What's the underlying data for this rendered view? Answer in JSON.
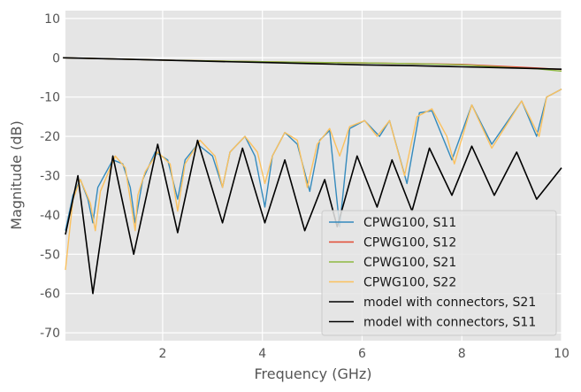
{
  "chart_data": {
    "type": "line",
    "title": "",
    "xlabel": "Frequency (GHz)",
    "ylabel": "Magnitude (dB)",
    "xlim": [
      0.05,
      10
    ],
    "ylim": [
      -72,
      12
    ],
    "xticks": [
      2,
      4,
      6,
      8,
      10
    ],
    "yticks": [
      10,
      0,
      -10,
      -20,
      -30,
      -40,
      -50,
      -60,
      -70
    ],
    "grid": true,
    "legend_position": "lower-right",
    "series": [
      {
        "name": "CPWG100, S11",
        "color": "#348ABD",
        "x": [
          0.05,
          0.2,
          0.35,
          0.5,
          0.6,
          0.7,
          1.0,
          1.2,
          1.35,
          1.45,
          1.6,
          1.85,
          2.1,
          2.3,
          2.45,
          2.7,
          3.0,
          3.2,
          3.35,
          3.65,
          3.85,
          4.05,
          4.2,
          4.45,
          4.7,
          4.95,
          5.15,
          5.35,
          5.55,
          5.75,
          6.05,
          6.35,
          6.55,
          6.9,
          7.15,
          7.4,
          7.8,
          8.2,
          8.6,
          9.2,
          9.5,
          9.7,
          10
        ],
        "y": [
          -44,
          -35,
          -31,
          -36,
          -42,
          -33,
          -26,
          -27,
          -33,
          -42,
          -31,
          -24,
          -26,
          -36,
          -26,
          -22,
          -25,
          -33,
          -24,
          -20,
          -25,
          -38,
          -25,
          -19,
          -22,
          -34,
          -21,
          -18.5,
          -43,
          -18,
          -16,
          -20,
          -16,
          -32,
          -14,
          -13.5,
          -26,
          -12,
          -22,
          -11,
          -20,
          -10,
          -8
        ]
      },
      {
        "name": "CPWG100, S12",
        "color": "#E24A33",
        "x": [
          0,
          1,
          2,
          3,
          4,
          5,
          6,
          7,
          8,
          9,
          9.5,
          10
        ],
        "y": [
          0,
          -0.3,
          -0.6,
          -0.8,
          -1.0,
          -1.2,
          -1.3,
          -1.5,
          -1.7,
          -2.3,
          -2.6,
          -3.0
        ]
      },
      {
        "name": "CPWG100, S21",
        "color": "#8EBA42",
        "x": [
          0,
          1,
          2,
          3,
          4,
          5,
          6,
          7,
          8,
          9,
          9.5,
          10
        ],
        "y": [
          0,
          -0.3,
          -0.6,
          -0.8,
          -1.0,
          -1.2,
          -1.3,
          -1.5,
          -1.8,
          -2.5,
          -2.8,
          -3.4
        ]
      },
      {
        "name": "CPWG100, S22",
        "color": "#FBC15E",
        "x": [
          0.05,
          0.2,
          0.35,
          0.55,
          0.65,
          0.75,
          1.05,
          1.25,
          1.45,
          1.5,
          1.65,
          1.9,
          2.15,
          2.3,
          2.45,
          2.75,
          3.05,
          3.2,
          3.35,
          3.65,
          3.9,
          4.05,
          4.2,
          4.45,
          4.7,
          4.9,
          5.1,
          5.35,
          5.55,
          5.75,
          6.05,
          6.3,
          6.55,
          6.85,
          7.1,
          7.4,
          7.7,
          7.85,
          8.2,
          8.6,
          9.2,
          9.55,
          9.7,
          10
        ],
        "y": [
          -54,
          -36,
          -31,
          -37,
          -44,
          -34,
          -25,
          -28,
          -44,
          -35,
          -29,
          -24,
          -27,
          -39,
          -27,
          -21,
          -25,
          -33,
          -24,
          -20,
          -24,
          -32,
          -25,
          -19,
          -21,
          -33,
          -22,
          -18,
          -25,
          -17.5,
          -16,
          -20,
          -16,
          -30,
          -15,
          -13,
          -20,
          -27,
          -12,
          -23,
          -11,
          -20,
          -10,
          -8
        ]
      },
      {
        "name": "model with connectors, S21",
        "color": "#000000",
        "x": [
          0,
          1,
          2,
          3,
          4,
          5,
          6,
          7,
          8,
          9,
          10
        ],
        "y": [
          0,
          -0.3,
          -0.6,
          -0.9,
          -1.2,
          -1.5,
          -1.8,
          -2.0,
          -2.3,
          -2.6,
          -2.9
        ]
      },
      {
        "name": "model with connectors, S11",
        "color": "#000000",
        "x": [
          0.05,
          0.3,
          0.6,
          1.0,
          1.42,
          1.9,
          2.3,
          2.7,
          3.2,
          3.6,
          4.05,
          4.45,
          4.85,
          5.25,
          5.5,
          5.9,
          6.3,
          6.6,
          7.0,
          7.35,
          7.8,
          8.2,
          8.65,
          9.1,
          9.5,
          10
        ],
        "y": [
          -45,
          -30,
          -60,
          -25,
          -50,
          -22,
          -44.5,
          -21,
          -42,
          -23,
          -42,
          -26,
          -44,
          -31,
          -43,
          -25,
          -38,
          -26,
          -39,
          -23,
          -35,
          -22.5,
          -35,
          -24,
          -36,
          -28
        ]
      }
    ]
  }
}
